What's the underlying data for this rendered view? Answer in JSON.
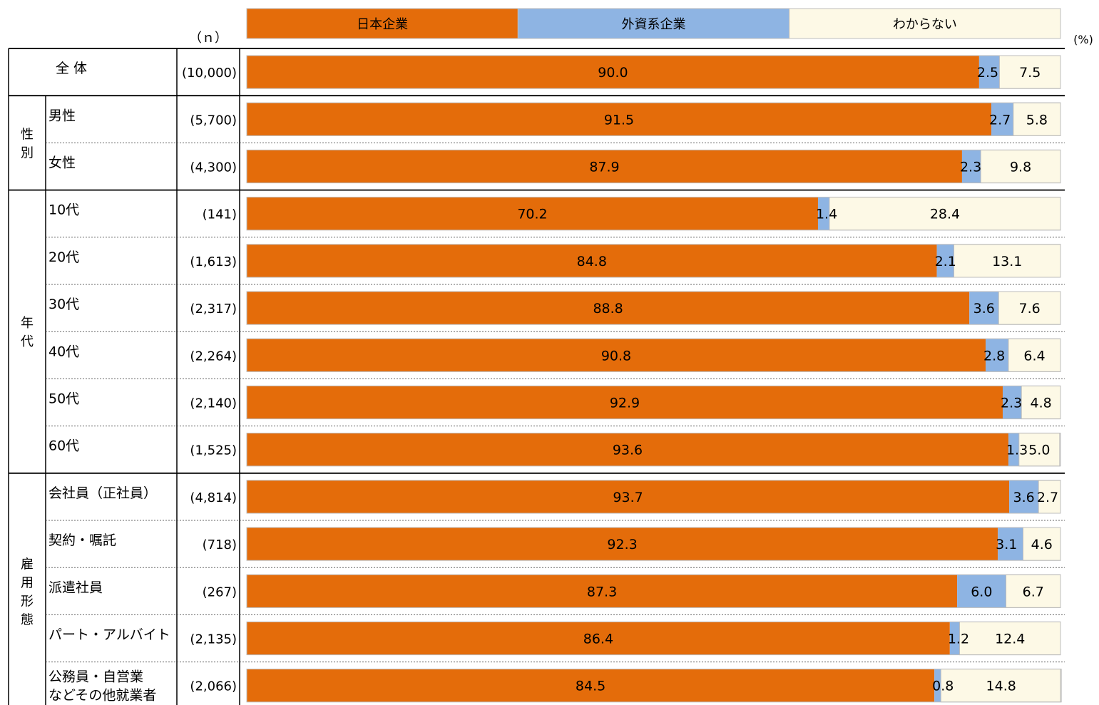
{
  "n_header": "（ｎ）",
  "unit": "(%)",
  "colors": {
    "japanese": "#E46C0A",
    "foreign": "#8EB4E3",
    "unknown": "#FDF9E6",
    "text": "#000000"
  },
  "chart_data": {
    "type": "bar",
    "orientation": "horizontal",
    "stacked": true,
    "percent_total": 100,
    "xlim": [
      0,
      100
    ],
    "legend_position": "top",
    "series": [
      {
        "name": "日本企業",
        "color": "#E46C0A"
      },
      {
        "name": "外資系企業",
        "color": "#8EB4E3"
      },
      {
        "name": "わからない",
        "color": "#FDF9E6"
      }
    ],
    "groups": [
      {
        "label": "",
        "rows": [
          {
            "label": "全 体",
            "n": "(10,000)",
            "values": [
              90.0,
              2.5,
              7.5
            ]
          }
        ]
      },
      {
        "label": "性別",
        "rows": [
          {
            "label": "男性",
            "n": "(5,700)",
            "values": [
              91.5,
              2.7,
              5.8
            ]
          },
          {
            "label": "女性",
            "n": "(4,300)",
            "values": [
              87.9,
              2.3,
              9.8
            ]
          }
        ]
      },
      {
        "label": "年代",
        "rows": [
          {
            "label": "10代",
            "n": "(141)",
            "values": [
              70.2,
              1.4,
              28.4
            ]
          },
          {
            "label": "20代",
            "n": "(1,613)",
            "values": [
              84.8,
              2.1,
              13.1
            ]
          },
          {
            "label": "30代",
            "n": "(2,317)",
            "values": [
              88.8,
              3.6,
              7.6
            ]
          },
          {
            "label": "40代",
            "n": "(2,264)",
            "values": [
              90.8,
              2.8,
              6.4
            ]
          },
          {
            "label": "50代",
            "n": "(2,140)",
            "values": [
              92.9,
              2.3,
              4.8
            ]
          },
          {
            "label": "60代",
            "n": "(1,525)",
            "values": [
              93.6,
              1.3,
              5.0
            ]
          }
        ]
      },
      {
        "label": "雇用形態",
        "rows": [
          {
            "label": "会社員（正社員）",
            "n": "(4,814)",
            "values": [
              93.7,
              3.6,
              2.7
            ]
          },
          {
            "label": "契約・嘱託",
            "n": "(718)",
            "values": [
              92.3,
              3.1,
              4.6
            ]
          },
          {
            "label": "派遣社員",
            "n": "(267)",
            "values": [
              87.3,
              6.0,
              6.7
            ]
          },
          {
            "label": "パート・アルバイト",
            "n": "(2,135)",
            "values": [
              86.4,
              1.2,
              12.4
            ]
          },
          {
            "label": [
              "公務員・自営業",
              "などその他就業者"
            ],
            "n": "(2,066)",
            "values": [
              84.5,
              0.8,
              14.8
            ]
          }
        ]
      }
    ]
  }
}
